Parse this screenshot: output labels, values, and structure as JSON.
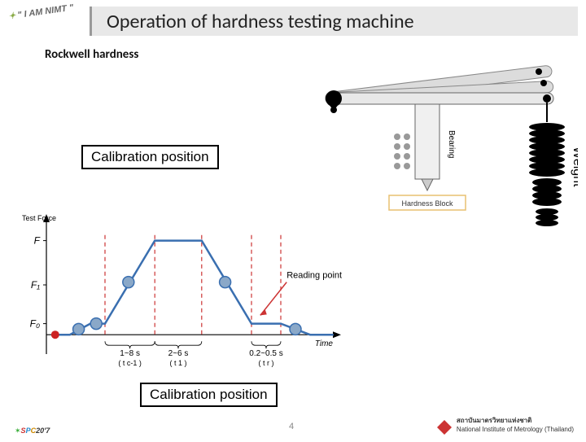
{
  "header": {
    "logo_text": "\" I AM NIMT \"",
    "title": "Operation of hardness testing machine"
  },
  "subtitle": "Rockwell hardness",
  "calibration_label": "Calibration position",
  "machine": {
    "bearing_label": "Bearing",
    "weight_label": "Weight",
    "block_label": "Hardness Block",
    "lever_color": "#dcdcdc",
    "pivot_color": "#000000",
    "bearing_body_color": "#e6e6e6",
    "dot_color": "#999999",
    "weight_color": "#000000",
    "block_border": "#e8c070"
  },
  "chart": {
    "type": "line",
    "x_axis_label": "Time",
    "y_axis_label": "Test Force",
    "y_ticks": [
      "F",
      "F₁",
      "F₀"
    ],
    "y_tick_positions": [
      0.18,
      0.5,
      0.78
    ],
    "reading_point_label": "Reading point",
    "segments_labels": [
      "1~8 s",
      "2~6 s",
      "0.2~0.5 s"
    ],
    "segments_sub": [
      "( t c-1 )",
      "( t 1 )",
      "( t r )"
    ],
    "line_color": "#3a6fb0",
    "marker_fill": "#8aa8c8",
    "marker_stroke": "#3a6fb0",
    "dash_color": "#cc3333",
    "axis_color": "#000000",
    "timeline_y": 0.86,
    "path_points": [
      [
        0.03,
        0.86
      ],
      [
        0.08,
        0.86
      ],
      [
        0.15,
        0.78
      ],
      [
        0.2,
        0.78
      ],
      [
        0.37,
        0.18
      ],
      [
        0.53,
        0.18
      ],
      [
        0.7,
        0.78
      ],
      [
        0.8,
        0.78
      ],
      [
        0.9,
        0.86
      ],
      [
        0.98,
        0.86
      ]
    ],
    "markers": [
      [
        0.11,
        0.82
      ],
      [
        0.17,
        0.78
      ],
      [
        0.28,
        0.48
      ],
      [
        0.61,
        0.48
      ],
      [
        0.85,
        0.82
      ]
    ],
    "dash_x": [
      0.2,
      0.37,
      0.53,
      0.7,
      0.8
    ],
    "red_dot": [
      0.03,
      0.86
    ]
  },
  "footer": {
    "spc": "SPC20'7",
    "page": "4",
    "nimt_th": "สถาบันมาตรวิทยาแห่งชาติ",
    "nimt_en": "National Institute of Metrology (Thailand)"
  }
}
